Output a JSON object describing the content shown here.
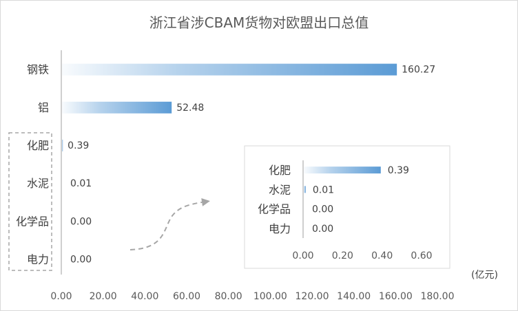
{
  "chart_data": [
    {
      "type": "bar",
      "orientation": "horizontal",
      "title": "浙江省涉CBAM货物对欧盟出口总值",
      "unit": "(亿元)",
      "categories": [
        "钢铁",
        "铝",
        "化肥",
        "水泥",
        "化学品",
        "电力"
      ],
      "values": [
        160.27,
        52.48,
        0.39,
        0.01,
        0.0,
        0.0
      ],
      "value_labels": [
        "160.27",
        "52.48",
        "0.39",
        "0.01",
        "0.00",
        "0.00"
      ],
      "xlim": [
        0,
        180
      ],
      "xticks": [
        "0.00",
        "20.00",
        "40.00",
        "60.00",
        "80.00",
        "100.00",
        "120.00",
        "140.00",
        "160.00",
        "180.00"
      ],
      "grid": false,
      "bar_color": "#5B9BD5",
      "bar_fill": "gradient-left-to-right"
    },
    {
      "type": "bar",
      "orientation": "horizontal",
      "role": "inset",
      "categories": [
        "化肥",
        "水泥",
        "化学品",
        "电力"
      ],
      "values": [
        0.39,
        0.01,
        0.0,
        0.0
      ],
      "value_labels": [
        "0.39",
        "0.01",
        "0.00",
        "0.00"
      ],
      "xlim": [
        0,
        0.6
      ],
      "xticks": [
        "0.00",
        "0.20",
        "0.40",
        "0.60"
      ],
      "grid": false,
      "bar_color": "#5B9BD5"
    }
  ]
}
